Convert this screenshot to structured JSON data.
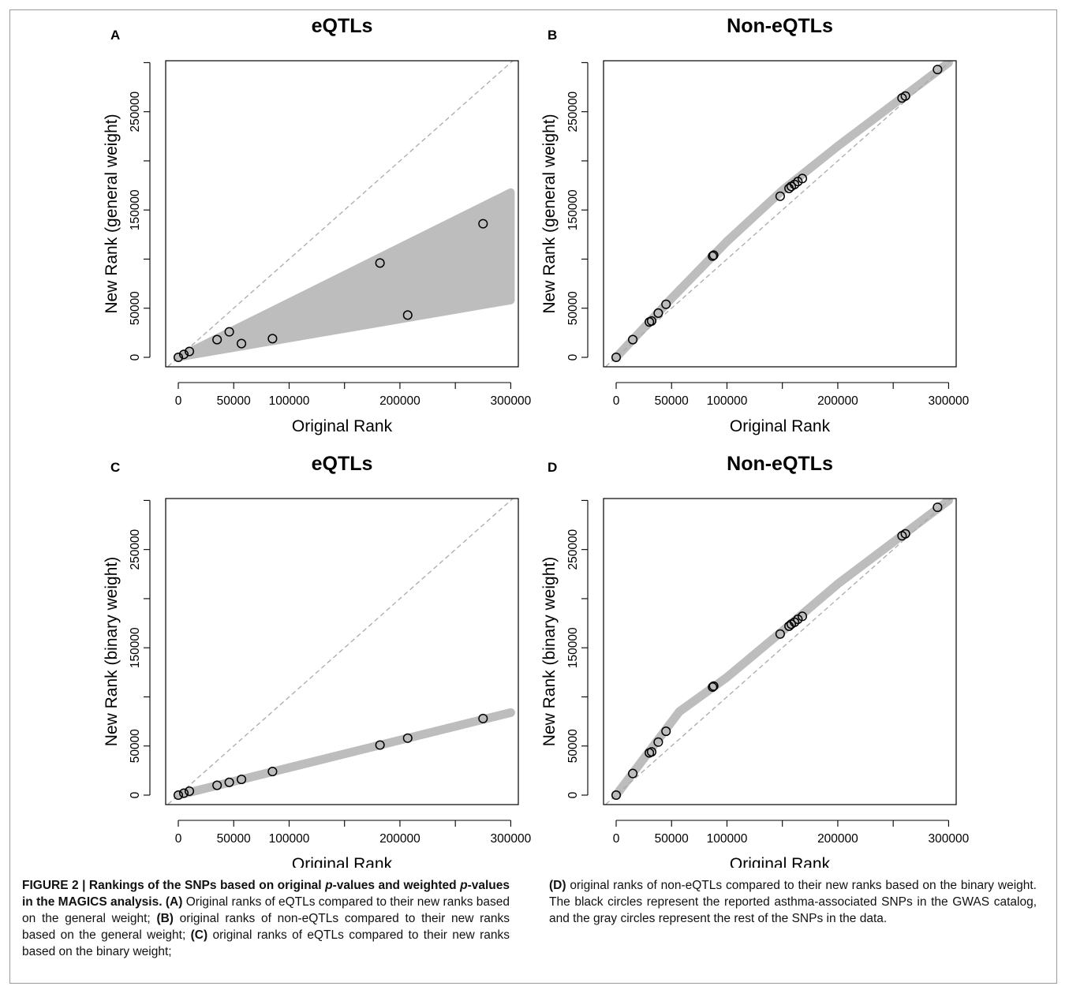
{
  "chart_data": [
    {
      "panel": "A",
      "title": "eQTLs",
      "type": "scatter",
      "xlabel": "Original Rank",
      "ylabel": "New Rank (general weight)",
      "xlim": [
        0,
        300000
      ],
      "ylim": [
        0,
        300000
      ],
      "xticks": [
        0,
        50000,
        100000,
        200000,
        300000
      ],
      "yticks": [
        0,
        50000,
        150000,
        250000
      ],
      "reference_line": "y = x (dashed)",
      "gray_region": {
        "x": [
          0,
          300000
        ],
        "y_upper": [
          0,
          168000
        ],
        "y_lower": [
          0,
          58000
        ]
      },
      "series": [
        {
          "name": "asthma-associated SNPs",
          "color": "#000000",
          "x": [
            0,
            5000,
            10000,
            35000,
            46000,
            57000,
            85000,
            182000,
            207000,
            275000
          ],
          "y": [
            0,
            3000,
            6000,
            18000,
            26000,
            14000,
            19000,
            96000,
            43000,
            136000
          ]
        }
      ]
    },
    {
      "panel": "B",
      "title": "Non-eQTLs",
      "type": "scatter",
      "xlabel": "Original Rank",
      "ylabel": "New Rank (general weight)",
      "xlim": [
        0,
        300000
      ],
      "ylim": [
        0,
        300000
      ],
      "xticks": [
        0,
        50000,
        100000,
        200000,
        300000
      ],
      "yticks": [
        0,
        50000,
        150000,
        250000
      ],
      "reference_line": "y = x (dashed)",
      "gray_curve": {
        "x": [
          0,
          50000,
          100000,
          150000,
          200000,
          300000
        ],
        "y": [
          0,
          60000,
          118000,
          170000,
          215000,
          300000
        ]
      },
      "series": [
        {
          "name": "asthma-associated SNPs",
          "color": "#000000",
          "x": [
            0,
            15000,
            30000,
            32000,
            38000,
            45000,
            87000,
            88000,
            148000,
            156000,
            158000,
            161000,
            164000,
            168000,
            258000,
            261000,
            290000
          ],
          "y": [
            0,
            18000,
            36000,
            37000,
            45000,
            54000,
            103000,
            104000,
            164000,
            172000,
            174000,
            176000,
            179000,
            182000,
            264000,
            266000,
            293000
          ]
        }
      ]
    },
    {
      "panel": "C",
      "title": "eQTLs",
      "type": "scatter",
      "xlabel": "Original Rank",
      "ylabel": "New Rank (binary weight)",
      "xlim": [
        0,
        300000
      ],
      "ylim": [
        0,
        300000
      ],
      "xticks": [
        0,
        50000,
        100000,
        200000,
        300000
      ],
      "yticks": [
        0,
        50000,
        150000,
        250000
      ],
      "reference_line": "y = x (dashed)",
      "gray_curve": {
        "x": [
          0,
          300000
        ],
        "y": [
          0,
          84000
        ]
      },
      "series": [
        {
          "name": "asthma-associated SNPs",
          "color": "#000000",
          "x": [
            0,
            5000,
            10000,
            35000,
            46000,
            57000,
            85000,
            182000,
            207000,
            275000
          ],
          "y": [
            0,
            2000,
            4000,
            10000,
            13000,
            16000,
            24000,
            51000,
            58000,
            78000
          ]
        }
      ]
    },
    {
      "panel": "D",
      "title": "Non-eQTLs",
      "type": "scatter",
      "xlabel": "Original Rank",
      "ylabel": "New Rank (binary weight)",
      "xlim": [
        0,
        300000
      ],
      "ylim": [
        0,
        300000
      ],
      "xticks": [
        0,
        50000,
        100000,
        200000,
        300000
      ],
      "yticks": [
        0,
        50000,
        150000,
        250000
      ],
      "reference_line": "y = x (dashed)",
      "gray_curve": {
        "x": [
          0,
          57000,
          100000,
          150000,
          200000,
          300000
        ],
        "y": [
          0,
          85000,
          120000,
          167000,
          215000,
          300000
        ]
      },
      "series": [
        {
          "name": "asthma-associated SNPs",
          "color": "#000000",
          "x": [
            0,
            15000,
            30000,
            32000,
            38000,
            45000,
            87000,
            88000,
            148000,
            156000,
            158000,
            161000,
            164000,
            168000,
            258000,
            261000,
            290000
          ],
          "y": [
            0,
            22000,
            43000,
            44000,
            54000,
            65000,
            110000,
            111000,
            164000,
            172000,
            174000,
            176000,
            179000,
            182000,
            264000,
            266000,
            293000
          ]
        }
      ]
    }
  ],
  "caption": {
    "lead": "FIGURE 2 | Rankings of the SNPs based on original ",
    "lead_italic": "p",
    "lead_mid": "-values and weighted ",
    "lead_italic2": "p",
    "lead_end": "-values in the MAGICS analysis.",
    "A_label": "(A)",
    "A_text": " Original ranks of eQTLs compared to their new ranks based on the general weight; ",
    "B_label": "(B)",
    "B_text": " original ranks of non-eQTLs compared to their new ranks based on the general weight; ",
    "C_label": "(C)",
    "C_text": " original ranks of eQTLs compared to their new ranks based on the binary weight; ",
    "D_label": "(D)",
    "D_text": " original ranks of non-eQTLs compared to their new ranks based on the binary weight. The black circles represent the reported asthma-associated SNPs in the GWAS catalog, and the gray circles represent the rest of the SNPs in the data."
  },
  "colors": {
    "gray": "#bdbdbd",
    "dash": "#aaaaaa",
    "circle": "#000000"
  }
}
